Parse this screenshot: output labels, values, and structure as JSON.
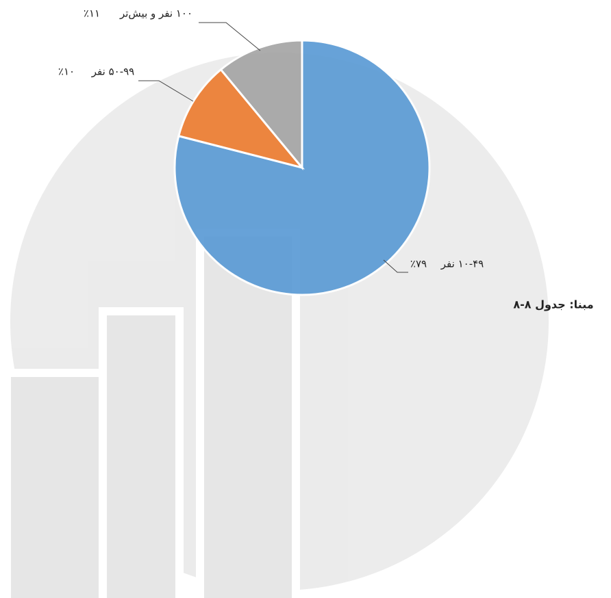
{
  "chart_data": {
    "type": "pie",
    "categories": [
      "۱۰-۴۹ نفر",
      "۵۰-۹۹ نفر",
      "۱۰۰ نفر و بیش‌تر"
    ],
    "values": [
      79,
      10,
      11
    ],
    "value_labels": [
      "٪۷۹",
      "٪۱۰",
      "٪۱۱"
    ],
    "colors": [
      "#5b9bd5",
      "#ed7d31",
      "#a5a5a5"
    ],
    "source": "مبنا: جدول ۸-۸"
  }
}
